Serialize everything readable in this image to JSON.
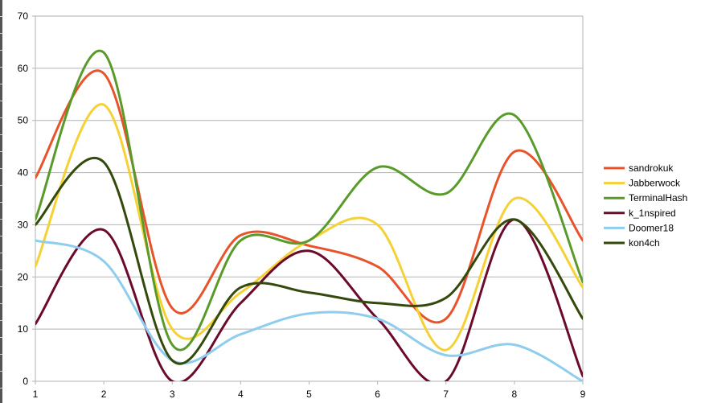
{
  "chart_data": {
    "type": "line",
    "smooth": true,
    "x": [
      1,
      2,
      3,
      4,
      5,
      6,
      7,
      8,
      9
    ],
    "ylim": [
      0,
      70
    ],
    "xlim": [
      1,
      9
    ],
    "y_ticks": [
      0,
      10,
      20,
      30,
      40,
      50,
      60,
      70
    ],
    "x_ticks": [
      1,
      2,
      3,
      4,
      5,
      6,
      7,
      8,
      9
    ],
    "grid": "horizontal",
    "legend_position": "right",
    "title": "",
    "xlabel": "",
    "ylabel": "",
    "series": [
      {
        "name": "sandrokuk",
        "color": "#e8532b",
        "values": [
          39,
          59,
          14,
          28,
          26,
          22,
          12,
          44,
          27
        ]
      },
      {
        "name": "Jabberwock",
        "color": "#f5d136",
        "values": [
          22,
          53,
          10,
          17,
          27,
          30,
          6,
          35,
          18
        ]
      },
      {
        "name": "TerminalHash",
        "color": "#5a9a2a",
        "values": [
          31,
          63,
          7,
          27,
          27,
          41,
          36,
          51,
          19
        ]
      },
      {
        "name": "k_1nspired",
        "color": "#6b0a2a",
        "values": [
          11,
          29,
          0,
          15,
          25,
          12,
          0,
          31,
          1
        ]
      },
      {
        "name": "Doomer18",
        "color": "#8fcdef",
        "values": [
          27,
          23,
          4,
          9,
          13,
          12,
          5,
          7,
          0
        ]
      },
      {
        "name": "kon4ch",
        "color": "#334a0c",
        "values": [
          30,
          42,
          4,
          18,
          17,
          15,
          16,
          31,
          12
        ]
      }
    ]
  }
}
